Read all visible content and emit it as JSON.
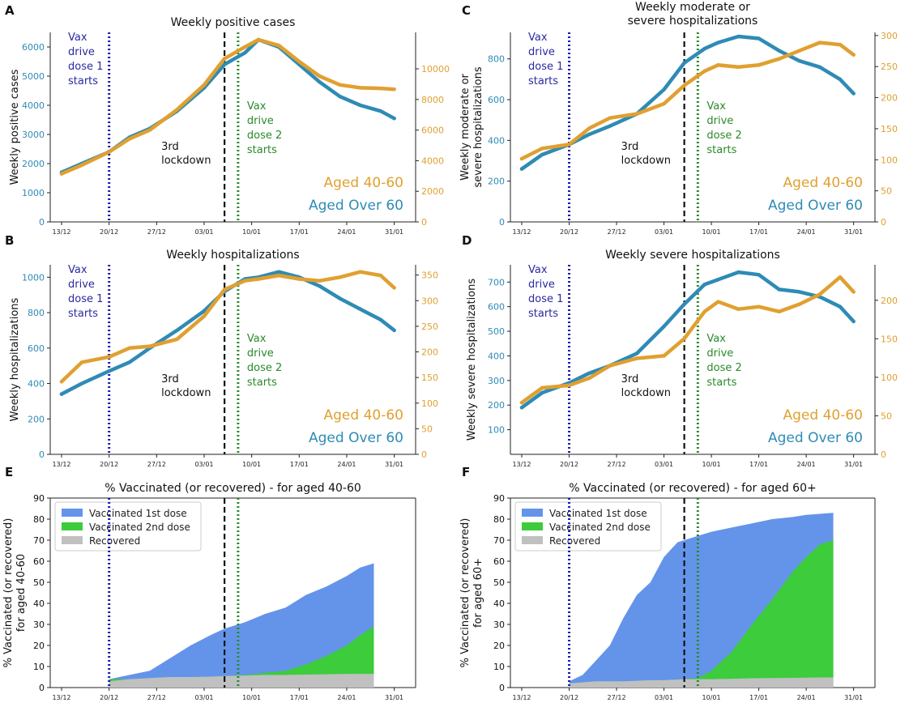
{
  "colors": {
    "over60": "#2e8bb5",
    "aged4060": "#e0a030",
    "dose1_line": "#1a1aa8",
    "dose2_line": "#2a8a2a",
    "lockdown_line": "#111111",
    "dose1_text": "#2a2aa0",
    "dose2_text": "#2a8a2a",
    "vacc1": "#6494ea",
    "vacc2": "#3ccc3c",
    "recovered": "#c0c0c0"
  },
  "common": {
    "x_ticks": [
      "13/12",
      "20/12",
      "27/12",
      "03/01",
      "10/01",
      "17/01",
      "24/01",
      "31/01"
    ],
    "dose1_label": [
      "Vax",
      "drive",
      "dose 1",
      "starts"
    ],
    "dose2_label": [
      "Vax",
      "drive",
      "dose 2",
      "starts"
    ],
    "lockdown_label": [
      "3rd",
      "lockdown"
    ],
    "legend_4060": "Aged 40-60",
    "legend_over60": "Aged Over 60",
    "legend_vacc1": "Vaccinated 1st dose",
    "legend_vacc2": "Vaccinated 2nd dose",
    "legend_recovered": "Recovered"
  },
  "chart_data": [
    {
      "id": "A",
      "type": "line",
      "panel_letter": "A",
      "title": [
        "Weekly positive cases"
      ],
      "ylabel": [
        "Weekly positive cases"
      ],
      "x_range": [
        0,
        50
      ],
      "ylim": [
        0,
        6500
      ],
      "y_ticks": [
        "0",
        "1000",
        "2000",
        "3000",
        "4000",
        "5000",
        "6000"
      ],
      "ylim_right": [
        0,
        12381
      ],
      "y_ticks_right": [
        "0",
        "2000",
        "4000",
        "6000",
        "8000",
        "10000"
      ],
      "events": {
        "dose1": 7,
        "lockdown": 24,
        "dose2": 26
      },
      "series": [
        {
          "name": "Aged Over 60",
          "axis": "left",
          "x": [
            0,
            3,
            7,
            10,
            13,
            17,
            21,
            24,
            27,
            29,
            32,
            35,
            38,
            41,
            44,
            47,
            49
          ],
          "values": [
            1700,
            2000,
            2400,
            2900,
            3200,
            3800,
            4600,
            5400,
            5800,
            6250,
            6000,
            5400,
            4800,
            4300,
            4000,
            3800,
            3550
          ]
        },
        {
          "name": "Aged 40-60",
          "axis": "left",
          "x": [
            0,
            3,
            7,
            10,
            13,
            17,
            21,
            24,
            27,
            29,
            32,
            35,
            38,
            41,
            44,
            47,
            49
          ],
          "values": [
            1650,
            1950,
            2400,
            2850,
            3150,
            3850,
            4700,
            5600,
            6000,
            6250,
            6050,
            5500,
            5000,
            4700,
            4600,
            4580,
            4550
          ]
        }
      ]
    },
    {
      "id": "B",
      "type": "line",
      "panel_letter": "B",
      "title": [
        "Weekly hospitalizations"
      ],
      "ylabel": [
        "Weekly hospitalizations"
      ],
      "x_range": [
        0,
        50
      ],
      "ylim": [
        0,
        1070
      ],
      "y_ticks": [
        "0",
        "200",
        "400",
        "600",
        "800",
        "1000"
      ],
      "ylim_right": [
        0,
        370
      ],
      "y_ticks_right": [
        "0",
        "50",
        "100",
        "150",
        "200",
        "250",
        "300",
        "350"
      ],
      "events": {
        "dose1": 7,
        "lockdown": 24,
        "dose2": 26
      },
      "series": [
        {
          "name": "Aged Over 60",
          "axis": "left",
          "x": [
            0,
            3,
            7,
            10,
            13,
            17,
            21,
            24,
            27,
            29,
            32,
            35,
            38,
            41,
            44,
            47,
            49
          ],
          "values": [
            340,
            400,
            470,
            520,
            600,
            700,
            810,
            920,
            990,
            1000,
            1030,
            1000,
            950,
            880,
            820,
            760,
            700
          ]
        },
        {
          "name": "Aged 40-60",
          "axis": "left",
          "x": [
            0,
            3,
            7,
            10,
            13,
            17,
            21,
            24,
            27,
            29,
            32,
            35,
            38,
            41,
            44,
            47,
            49
          ],
          "values": [
            410,
            520,
            550,
            600,
            610,
            650,
            780,
            930,
            980,
            990,
            1010,
            990,
            980,
            1000,
            1030,
            1010,
            940
          ]
        }
      ]
    },
    {
      "id": "C",
      "type": "line",
      "panel_letter": "C",
      "title": [
        "Weekly moderate or",
        "severe hospitalizations"
      ],
      "ylabel": [
        "Weekly moderate or",
        "severe hospitalizations"
      ],
      "x_range": [
        0,
        50
      ],
      "ylim": [
        0,
        930
      ],
      "y_ticks": [
        "0",
        "200",
        "400",
        "600",
        "800"
      ],
      "ylim_right": [
        0,
        305
      ],
      "y_ticks_right": [
        "0",
        "50",
        "100",
        "150",
        "200",
        "250",
        "300"
      ],
      "events": {
        "dose1": 7,
        "lockdown": 24,
        "dose2": 26
      },
      "series": [
        {
          "name": "Aged Over 60",
          "axis": "left",
          "x": [
            0,
            3,
            7,
            10,
            13,
            17,
            21,
            24,
            27,
            29,
            32,
            35,
            38,
            41,
            44,
            47,
            49
          ],
          "values": [
            260,
            330,
            380,
            430,
            470,
            530,
            650,
            780,
            850,
            880,
            910,
            900,
            840,
            790,
            760,
            700,
            630
          ]
        },
        {
          "name": "Aged 40-60",
          "axis": "left",
          "x": [
            0,
            3,
            7,
            10,
            13,
            17,
            21,
            24,
            27,
            29,
            32,
            35,
            38,
            41,
            44,
            47,
            49
          ],
          "values": [
            310,
            360,
            380,
            460,
            510,
            530,
            580,
            670,
            740,
            770,
            760,
            770,
            800,
            840,
            880,
            870,
            820
          ]
        }
      ]
    },
    {
      "id": "D",
      "type": "line",
      "panel_letter": "D",
      "title": [
        "Weekly severe hospitalizations"
      ],
      "ylabel": [
        "Weekly severe hospitalizations"
      ],
      "x_range": [
        0,
        50
      ],
      "ylim": [
        0,
        770
      ],
      "y_ticks": [
        "100",
        "200",
        "300",
        "400",
        "500",
        "600",
        "700"
      ],
      "ylim_right": [
        0,
        246
      ],
      "y_ticks_right": [
        "0",
        "50",
        "100",
        "150",
        "200"
      ],
      "events": {
        "dose1": 7,
        "lockdown": 24,
        "dose2": 26
      },
      "series": [
        {
          "name": "Aged Over 60",
          "axis": "left",
          "x": [
            0,
            3,
            7,
            10,
            13,
            17,
            21,
            24,
            27,
            29,
            32,
            35,
            38,
            41,
            44,
            47,
            49
          ],
          "values": [
            190,
            250,
            290,
            330,
            360,
            410,
            520,
            610,
            690,
            710,
            740,
            730,
            670,
            660,
            640,
            600,
            540
          ]
        },
        {
          "name": "Aged 40-60",
          "axis": "left",
          "x": [
            0,
            3,
            7,
            10,
            13,
            17,
            21,
            24,
            27,
            29,
            32,
            35,
            38,
            41,
            44,
            47,
            49
          ],
          "values": [
            210,
            270,
            280,
            310,
            360,
            390,
            400,
            470,
            580,
            620,
            590,
            600,
            580,
            610,
            650,
            720,
            660
          ]
        }
      ]
    },
    {
      "id": "E",
      "type": "area",
      "panel_letter": "E",
      "title": [
        "% Vaccinated (or recovered) - for aged 40-60"
      ],
      "ylabel": [
        "% Vaccinated (or recovered)",
        "for aged 40-60"
      ],
      "x_range": [
        0,
        50
      ],
      "ylim": [
        0,
        90
      ],
      "y_ticks": [
        "0",
        "10",
        "20",
        "30",
        "40",
        "50",
        "60",
        "70",
        "80",
        "90"
      ],
      "events": {
        "dose1": 7,
        "lockdown": 24,
        "dose2": 26
      },
      "x": [
        7,
        10,
        13,
        16,
        19,
        22,
        24,
        27,
        30,
        33,
        36,
        39,
        42,
        44,
        46
      ],
      "stacks": [
        {
          "name": "Recovered",
          "values": [
            3,
            4,
            4.5,
            5,
            5,
            5.2,
            5.5,
            5.7,
            6,
            6,
            6.2,
            6.3,
            6.5,
            6.5,
            6.5
          ]
        },
        {
          "name": "Vaccinated 2nd dose",
          "values": [
            4,
            4,
            4.5,
            5,
            5,
            5.2,
            5.5,
            6,
            7,
            8,
            11,
            15,
            20,
            25,
            29
          ]
        },
        {
          "name": "Vaccinated 1st dose",
          "values": [
            4,
            6,
            8,
            14,
            20,
            25,
            28,
            31,
            35,
            38,
            44,
            48,
            53,
            57,
            59
          ]
        }
      ]
    },
    {
      "id": "F",
      "type": "area",
      "panel_letter": "F",
      "title": [
        "% Vaccinated (or recovered) - for aged 60+"
      ],
      "ylabel": [
        "% Vaccinated (or recovered)",
        "for aged 60+"
      ],
      "x_range": [
        0,
        50
      ],
      "ylim": [
        0,
        90
      ],
      "y_ticks": [
        "0",
        "10",
        "20",
        "30",
        "40",
        "50",
        "60",
        "70",
        "80",
        "90"
      ],
      "events": {
        "dose1": 7,
        "lockdown": 24,
        "dose2": 26
      },
      "x": [
        7,
        9,
        11,
        13,
        15,
        17,
        19,
        21,
        23,
        24,
        26,
        28,
        31,
        34,
        37,
        40,
        42,
        44,
        46
      ],
      "stacks": [
        {
          "name": "Recovered",
          "values": [
            2,
            2.5,
            3,
            3,
            3,
            3.2,
            3.5,
            3.5,
            3.8,
            4,
            4,
            4,
            4.2,
            4.4,
            4.5,
            4.6,
            4.7,
            4.8,
            4.8
          ]
        },
        {
          "name": "Vaccinated 2nd dose",
          "values": [
            2,
            2.5,
            3,
            3,
            3,
            3.2,
            3.5,
            3.5,
            3.8,
            4,
            4.5,
            8,
            17,
            30,
            42,
            55,
            62,
            68,
            70
          ]
        },
        {
          "name": "Vaccinated 1st dose",
          "values": [
            3,
            6,
            13,
            20,
            33,
            44,
            50,
            62,
            69,
            70,
            72,
            74,
            76,
            78,
            80,
            81,
            82,
            82.5,
            83
          ]
        }
      ]
    }
  ]
}
